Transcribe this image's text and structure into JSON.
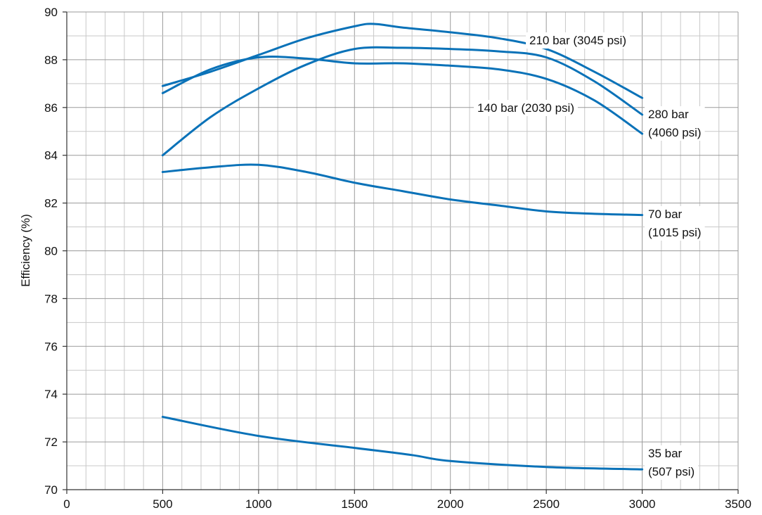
{
  "chart_data": {
    "type": "line",
    "title": "",
    "xlabel": "",
    "ylabel": "Efficiency (%)",
    "xlim": [
      0,
      3500
    ],
    "ylim": [
      70,
      90
    ],
    "x_ticks": [
      0,
      500,
      1000,
      1500,
      2000,
      2500,
      3000,
      3500
    ],
    "y_ticks": [
      70,
      72,
      74,
      76,
      78,
      80,
      82,
      84,
      86,
      88,
      90
    ],
    "grid": true,
    "legend": "none (direct line labels)",
    "line_color": "#0a72b8",
    "series": [
      {
        "name": "35 bar (507 psi)",
        "label_lines": [
          "35 bar",
          "(507 psi)"
        ],
        "x": [
          500,
          1000,
          1500,
          1800,
          2000,
          2500,
          3000
        ],
        "y": [
          73.05,
          72.25,
          71.75,
          71.45,
          71.2,
          70.95,
          70.85
        ]
      },
      {
        "name": "70 bar (1015 psi)",
        "label_lines": [
          "70 bar",
          "(1015 psi)"
        ],
        "x": [
          500,
          750,
          1000,
          1250,
          1500,
          1750,
          2000,
          2250,
          2500,
          2750,
          3000
        ],
        "y": [
          83.3,
          83.5,
          83.6,
          83.3,
          82.85,
          82.5,
          82.15,
          81.9,
          81.65,
          81.55,
          81.5
        ]
      },
      {
        "name": "140 bar (2030 psi)",
        "label_lines": [
          "140 bar (2030 psi)"
        ],
        "x": [
          500,
          750,
          1000,
          1250,
          1500,
          1750,
          2000,
          2250,
          2500,
          2750,
          3000
        ],
        "y": [
          86.6,
          87.6,
          88.1,
          88.05,
          87.85,
          87.85,
          87.75,
          87.6,
          87.2,
          86.3,
          84.9
        ]
      },
      {
        "name": "210 bar (3045 psi)",
        "label_lines": [
          "210 bar (3045 psi)"
        ],
        "x": [
          500,
          750,
          1000,
          1250,
          1500,
          1600,
          1750,
          2000,
          2250,
          2500,
          2750,
          3000
        ],
        "y": [
          86.9,
          87.5,
          88.2,
          88.9,
          89.4,
          89.5,
          89.35,
          89.15,
          88.9,
          88.45,
          87.5,
          86.4
        ]
      },
      {
        "name": "280 bar (4060 psi)",
        "label_lines": [
          "280 bar",
          "(4060 psi)"
        ],
        "x": [
          500,
          750,
          1000,
          1250,
          1500,
          1750,
          2000,
          2250,
          2500,
          2750,
          3000
        ],
        "y": [
          84.0,
          85.6,
          86.8,
          87.8,
          88.45,
          88.5,
          88.45,
          88.35,
          88.1,
          87.1,
          85.7
        ]
      }
    ]
  }
}
